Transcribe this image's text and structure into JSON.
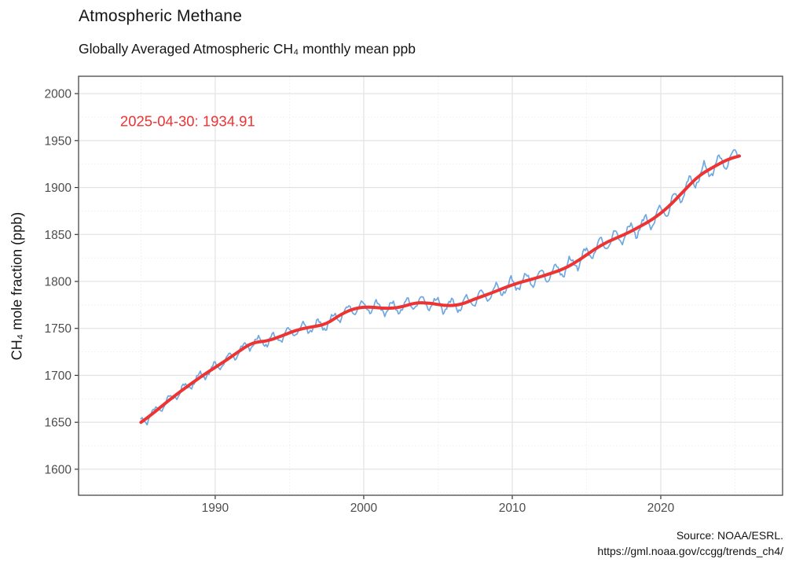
{
  "figure": {
    "title": "Atmospheric Methane",
    "subtitle": "Globally Averaged Atmospheric CH₄ monthly mean ppb",
    "ylabel": "CH₄ mole fraction (ppb)",
    "caption_line1": "Source: NOAA/ESRL.",
    "caption_line2": "https://gml.noaa.gov/ccgg/trends_ch4/"
  },
  "colors": {
    "accent_red": "#EE3333",
    "series_blue": "#6FA8E1",
    "grid_major": "#e4e4e4",
    "grid_minor": "#efefef",
    "panel_border": "#474747",
    "tick_mark": "#333333",
    "tick_label": "#4d4d4d",
    "text": "#141414",
    "panel_background": "#ffffff"
  },
  "chart_data": {
    "type": "line",
    "title": "Atmospheric Methane",
    "subtitle": "Globally Averaged Atmospheric CH₄ monthly mean ppb",
    "xlabel": "",
    "ylabel": "CH₄ mole fraction (ppb)",
    "legend": "none",
    "grid": "on",
    "xlim": [
      1980.8,
      2028.2
    ],
    "ylim": [
      1572.3,
      2018.5
    ],
    "x_ticks": [
      1990,
      2000,
      2010,
      2020
    ],
    "x_minor": [
      1985,
      1995,
      2005,
      2015,
      2025
    ],
    "y_ticks": [
      1600,
      1650,
      1700,
      1750,
      1800,
      1850,
      1900,
      1950,
      2000
    ],
    "y_minor": [
      1575,
      1625,
      1675,
      1725,
      1775,
      1825,
      1875,
      1925,
      1975
    ],
    "annotation": {
      "text": "2025-04-30: 1934.91",
      "x": 1983.6,
      "y": 1970.5
    },
    "last_observation": {
      "date": "2025-04-30",
      "value": 1934.91
    },
    "series": [
      {
        "name": "monthly mean",
        "style": "thin",
        "color": "#6FA8E1",
        "model": "trend_plus_seasonal",
        "monthly_model": {
          "start_year": 1985.0,
          "end_year": 2025.29,
          "points_per_year": 12,
          "seasonal_phase": 0.9,
          "amp_base_ppb": 4.5,
          "amp_growth_ppb": 4.5,
          "amp_jitter": 0.22,
          "noise1_ppb": 1.3,
          "noise2_ppb": 0.8
        }
      },
      {
        "name": "trend (deseasonalized)",
        "style": "thick",
        "color": "#EE3333",
        "points": [
          [
            1985.0,
            1650.0
          ],
          [
            1985.5,
            1655.5
          ],
          [
            1986.5,
            1668.5
          ],
          [
            1987.5,
            1681.0
          ],
          [
            1988.5,
            1692.5
          ],
          [
            1989.5,
            1703.5
          ],
          [
            1990.5,
            1713.5
          ],
          [
            1991.5,
            1724.5
          ],
          [
            1992.5,
            1735.0
          ],
          [
            1993.5,
            1736.5
          ],
          [
            1994.5,
            1742.0
          ],
          [
            1995.5,
            1748.5
          ],
          [
            1996.5,
            1751.5
          ],
          [
            1997.5,
            1754.5
          ],
          [
            1998.5,
            1765.5
          ],
          [
            1999.5,
            1772.0
          ],
          [
            2000.5,
            1773.0
          ],
          [
            2001.5,
            1771.0
          ],
          [
            2002.5,
            1772.5
          ],
          [
            2003.5,
            1777.5
          ],
          [
            2004.5,
            1777.0
          ],
          [
            2005.5,
            1774.0
          ],
          [
            2006.5,
            1775.0
          ],
          [
            2007.5,
            1781.5
          ],
          [
            2008.5,
            1787.0
          ],
          [
            2009.5,
            1793.5
          ],
          [
            2010.5,
            1799.0
          ],
          [
            2011.5,
            1803.0
          ],
          [
            2012.5,
            1808.0
          ],
          [
            2013.5,
            1813.5
          ],
          [
            2014.5,
            1822.5
          ],
          [
            2015.5,
            1834.0
          ],
          [
            2016.5,
            1843.0
          ],
          [
            2017.5,
            1849.5
          ],
          [
            2018.5,
            1857.5
          ],
          [
            2019.5,
            1866.5
          ],
          [
            2020.5,
            1879.0
          ],
          [
            2021.5,
            1895.5
          ],
          [
            2022.5,
            1912.0
          ],
          [
            2023.5,
            1921.5
          ],
          [
            2024.5,
            1930.0
          ],
          [
            2025.29,
            1933.5
          ]
        ]
      }
    ],
    "caption": [
      "Source: NOAA/ESRL.",
      "https://gml.noaa.gov/ccgg/trends_ch4/"
    ]
  }
}
